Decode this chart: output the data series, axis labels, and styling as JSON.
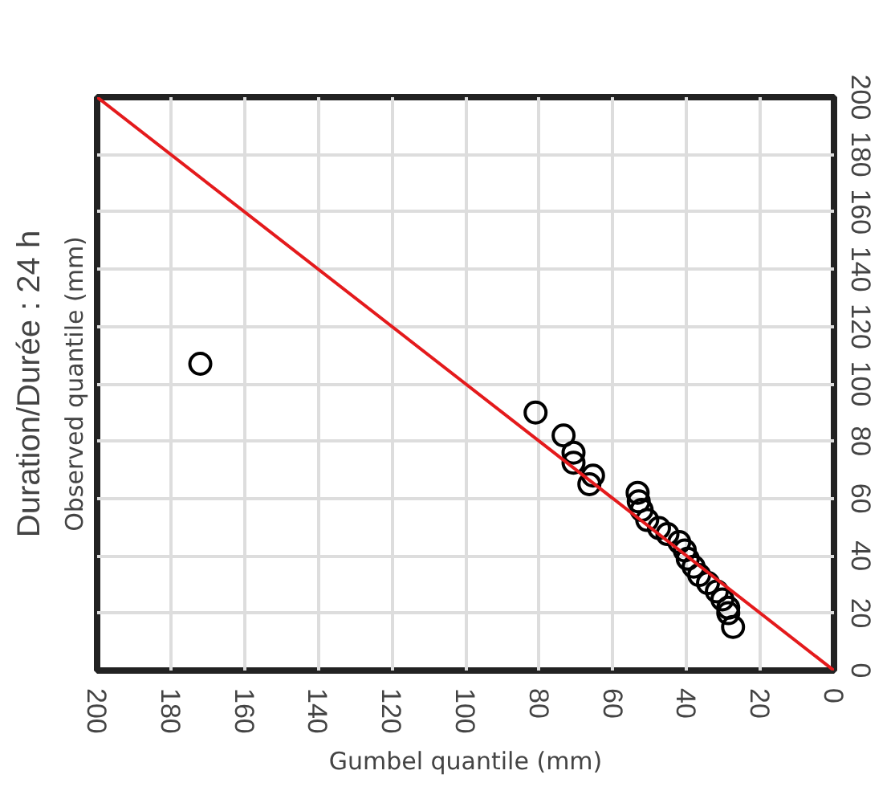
{
  "chart_data": {
    "type": "scatter",
    "title": "Duration/Durée : 24 h",
    "xlabel": "Gumbel quantile (mm)",
    "ylabel": "Observed quantile (mm)",
    "xlim": [
      200,
      0
    ],
    "ylim": [
      0,
      200
    ],
    "xticks": [
      200,
      180,
      160,
      140,
      120,
      100,
      80,
      60,
      40,
      20,
      0
    ],
    "yticks": [
      0,
      20,
      40,
      60,
      80,
      100,
      120,
      140,
      160,
      180,
      200
    ],
    "grid": true,
    "series": [
      {
        "marker": "circle",
        "color": "#000000",
        "x": [
          172,
          81,
          73.4,
          70.7,
          70.7,
          65.4,
          66.4,
          53.3,
          53,
          52.2,
          50.7,
          47.5,
          45.2,
          42,
          40.5,
          39.7,
          38.1,
          36.6,
          34.2,
          31.8,
          30.3,
          28.7,
          28.7,
          27.4
        ],
        "values": [
          107,
          90,
          82,
          76,
          72.5,
          68,
          65,
          62,
          59,
          56,
          52.5,
          49.7,
          47.6,
          44.8,
          41.9,
          39,
          36.2,
          33.3,
          30.5,
          27.6,
          24.8,
          21.9,
          20,
          15.2
        ]
      },
      {
        "type": "line",
        "marker": "none",
        "color": "#e41a1c",
        "x": [
          0,
          200
        ],
        "values": [
          0,
          200
        ]
      }
    ]
  }
}
